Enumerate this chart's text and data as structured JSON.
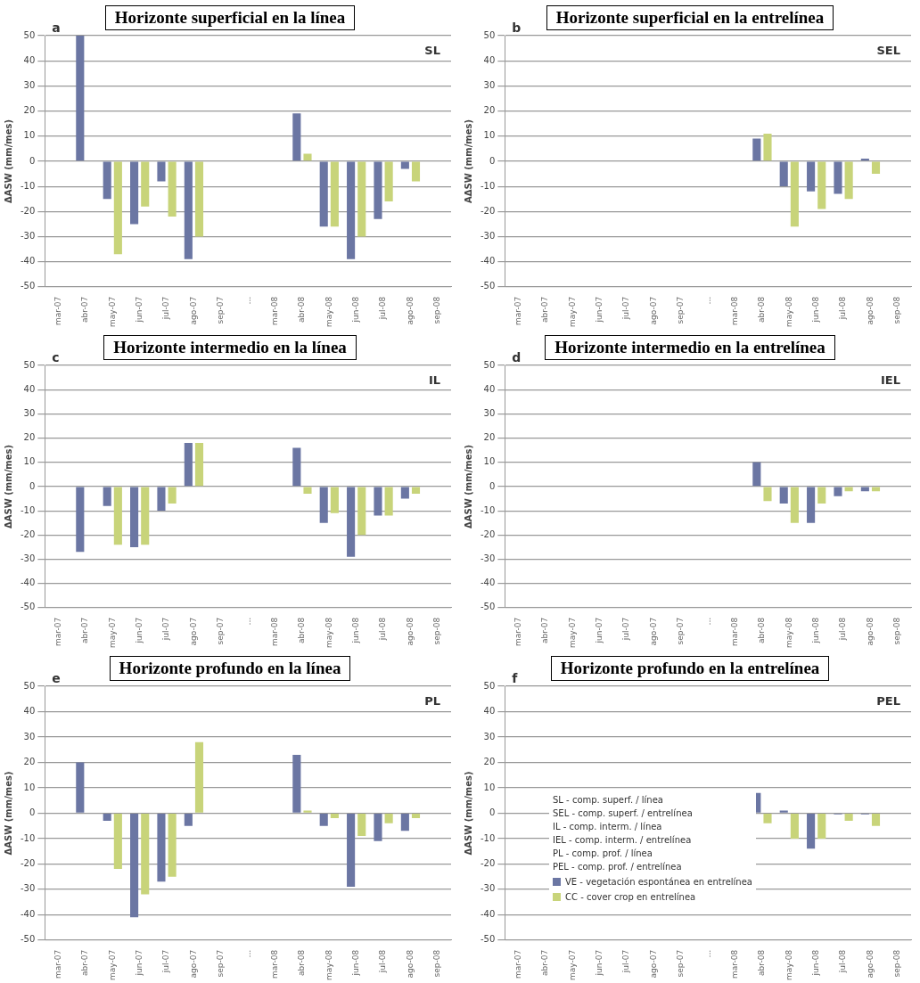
{
  "chart_data": [
    {
      "type": "bar",
      "title": "Horizonte superficial en la línea",
      "ylabel": "ΔASW (mm/mes)",
      "categories": [
        "mar-07",
        "abr-07",
        "may-07",
        "jun-07",
        "jul-07",
        "ago-07",
        "sep-07",
        "...",
        "mar-08",
        "abr-08",
        "may-08",
        "jun-08",
        "jul-08",
        "ago-08",
        "sep-08"
      ],
      "series": [
        {
          "color": "#6b76a3",
          "values": [
            null,
            50,
            -15,
            -25,
            -8,
            -39,
            null,
            null,
            null,
            19,
            -26,
            -39,
            -23,
            -3,
            null
          ]
        },
        {
          "color": "#c8d47a",
          "values": [
            null,
            null,
            -37,
            -18,
            -22,
            -30,
            null,
            null,
            null,
            3,
            -26,
            -30,
            -16,
            -8,
            null
          ]
        }
      ],
      "ylim": [
        -50,
        50
      ],
      "yticks": [
        -50,
        -40,
        -30,
        -20,
        -10,
        0,
        10,
        20,
        30,
        40,
        50
      ],
      "grid": "y",
      "annotations": [
        "a",
        "SL"
      ]
    },
    {
      "type": "bar",
      "title": "Horizonte superficial en la entrelínea",
      "ylabel": "AΔSW (mm/mes)",
      "categories": [
        "mar-07",
        "abr-07",
        "may-07",
        "jun-07",
        "jul-07",
        "ago-07",
        "sep-07",
        "...",
        "mar-08",
        "abr-08",
        "may-08",
        "jun-08",
        "jul-08",
        "ago-08",
        "sep-08"
      ],
      "series": [
        {
          "color": "#6b76a3",
          "values": [
            null,
            null,
            null,
            null,
            null,
            null,
            null,
            null,
            null,
            9,
            -10,
            -12,
            -13,
            1,
            null
          ]
        },
        {
          "color": "#c8d47a",
          "values": [
            null,
            null,
            null,
            null,
            null,
            null,
            null,
            null,
            null,
            11,
            -26,
            -19,
            -15,
            -5,
            null
          ]
        }
      ],
      "ylim": [
        -50,
        50
      ],
      "yticks": [
        -50,
        -40,
        -30,
        -20,
        -10,
        0,
        10,
        20,
        30,
        40,
        50
      ],
      "grid": "y",
      "annotations": [
        "b",
        "SEL"
      ]
    },
    {
      "type": "bar",
      "title": "Horizonte intermedio en la línea",
      "ylabel": "ΔASW (mm/mes)",
      "categories": [
        "mar-07",
        "abr-07",
        "may-07",
        "jun-07",
        "jul-07",
        "ago-07",
        "sep-07",
        "...",
        "mar-08",
        "abr-08",
        "may-08",
        "jun-08",
        "jul-08",
        "ago-08",
        "sep-08"
      ],
      "series": [
        {
          "color": "#6b76a3",
          "values": [
            null,
            -27,
            -8,
            -25,
            -10,
            18,
            null,
            null,
            null,
            16,
            -15,
            -29,
            -12,
            -5,
            null
          ]
        },
        {
          "color": "#c8d47a",
          "values": [
            null,
            null,
            -24,
            -24,
            -7,
            18,
            null,
            null,
            null,
            -3,
            -11,
            -20,
            -12,
            -3,
            null
          ]
        }
      ],
      "ylim": [
        -50,
        50
      ],
      "yticks": [
        -50,
        -40,
        -30,
        -20,
        -10,
        0,
        10,
        20,
        30,
        40,
        50
      ],
      "grid": "y",
      "annotations": [
        "c",
        "IL"
      ]
    },
    {
      "type": "bar",
      "title": "Horizonte intermedio en la entrelínea",
      "ylabel": "ΔASW (mm/mes)",
      "categories": [
        "mar-07",
        "abr-07",
        "may-07",
        "jun-07",
        "jul-07",
        "ago-07",
        "sep-07",
        "...",
        "mar-08",
        "abr-08",
        "may-08",
        "jun-08",
        "jul-08",
        "ago-08",
        "sep-08"
      ],
      "series": [
        {
          "color": "#6b76a3",
          "values": [
            null,
            null,
            null,
            null,
            null,
            null,
            null,
            null,
            null,
            10,
            -7,
            -15,
            -4,
            -2,
            null
          ]
        },
        {
          "color": "#c8d47a",
          "values": [
            null,
            null,
            null,
            null,
            null,
            null,
            null,
            null,
            null,
            -6,
            -15,
            -7,
            -2,
            -2,
            null
          ]
        }
      ],
      "ylim": [
        -50,
        50
      ],
      "yticks": [
        -50,
        -40,
        -30,
        -20,
        -10,
        0,
        10,
        20,
        30,
        40,
        50
      ],
      "grid": "y",
      "annotations": [
        "d",
        "IEL"
      ]
    },
    {
      "type": "bar",
      "title": "Horizonte profundo en la línea",
      "ylabel": "ΔASW (mm/mes)",
      "categories": [
        "mar-07",
        "abr-07",
        "may-07",
        "jun-07",
        "jul-07",
        "ago-07",
        "sep-07",
        "...",
        "mar-08",
        "abr-08",
        "may-08",
        "jun-08",
        "jul-08",
        "ago-08",
        "sep-08"
      ],
      "series": [
        {
          "color": "#6b76a3",
          "values": [
            null,
            20,
            -3,
            -41,
            -27,
            -5,
            null,
            null,
            null,
            23,
            -5,
            -29,
            -11,
            -7,
            null
          ]
        },
        {
          "color": "#c8d47a",
          "values": [
            null,
            null,
            -22,
            -32,
            -25,
            28,
            null,
            null,
            null,
            1,
            -2,
            -9,
            -4,
            -2,
            null
          ]
        }
      ],
      "ylim": [
        -50,
        50
      ],
      "yticks": [
        -50,
        -40,
        -30,
        -20,
        -10,
        0,
        10,
        20,
        30,
        40,
        50
      ],
      "grid": "y",
      "annotations": [
        "e",
        "PL"
      ]
    },
    {
      "type": "bar",
      "title": "Horizonte profundo en la entrelínea",
      "ylabel": "ΔASW (mm/mes)",
      "categories": [
        "mar-07",
        "abr-07",
        "may-07",
        "jun-07",
        "jul-07",
        "ago-07",
        "sep-07",
        "...",
        "mar-08",
        "abr-08",
        "may-08",
        "jun-08",
        "jul-08",
        "ago-08",
        "sep-08"
      ],
      "series": [
        {
          "name": "VE - vegetación espontánea en entrelínea",
          "color": "#6b76a3",
          "values": [
            null,
            null,
            null,
            null,
            null,
            null,
            null,
            null,
            null,
            8,
            1,
            -14,
            -0.5,
            -0.5,
            null
          ]
        },
        {
          "name": "CC - cover crop en entrelínea",
          "color": "#c8d47a",
          "values": [
            null,
            null,
            null,
            null,
            null,
            null,
            null,
            null,
            null,
            -4,
            -10,
            -10,
            -3,
            -5,
            null
          ]
        }
      ],
      "ylim": [
        -50,
        50
      ],
      "yticks": [
        -50,
        -40,
        -30,
        -20,
        -10,
        0,
        10,
        20,
        30,
        40,
        50
      ],
      "grid": "y",
      "legend": "left",
      "annotations": [
        "f",
        "PEL",
        "SL - comp. superf. / línea",
        "SEL - comp. superf. / entrelínea",
        "IL - comp. interm. / línea",
        "IEL - comp. interm. / entrelínea",
        "PL - comp. prof. / línea",
        "PEL - comp. prof. / entrelínea"
      ]
    }
  ]
}
